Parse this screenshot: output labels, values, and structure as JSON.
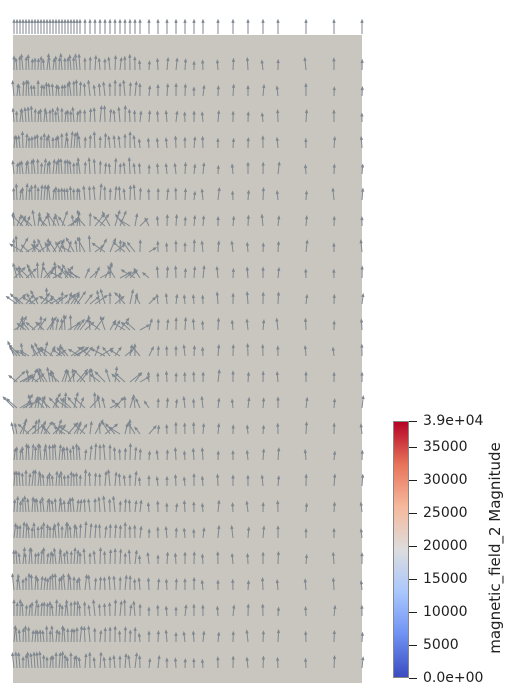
{
  "scene": {
    "background_color": "#ffffff",
    "surface_color": "#c8c6be",
    "glyph_color": "#7f8790"
  },
  "colorbar": {
    "title": "magnetic_field_2 Magnitude",
    "gradient_colors": [
      "#3b4cc0",
      "#6f92f3",
      "#aac7fd",
      "#dddddd",
      "#f6b99c",
      "#e7745b",
      "#b40426"
    ],
    "max_label": "3.9e+04",
    "min_label": "0.0e+00",
    "ticks": [
      {
        "value": 39000,
        "label": "3.9e+04"
      },
      {
        "value": 35000,
        "label": "35000"
      },
      {
        "value": 30000,
        "label": "30000"
      },
      {
        "value": 25000,
        "label": "25000"
      },
      {
        "value": 20000,
        "label": "20000"
      },
      {
        "value": 15000,
        "label": "15000"
      },
      {
        "value": 10000,
        "label": "10000"
      },
      {
        "value": 5000,
        "label": "5000"
      },
      {
        "value": 0,
        "label": "0.0e+00"
      }
    ],
    "range": [
      0,
      39000
    ]
  }
}
